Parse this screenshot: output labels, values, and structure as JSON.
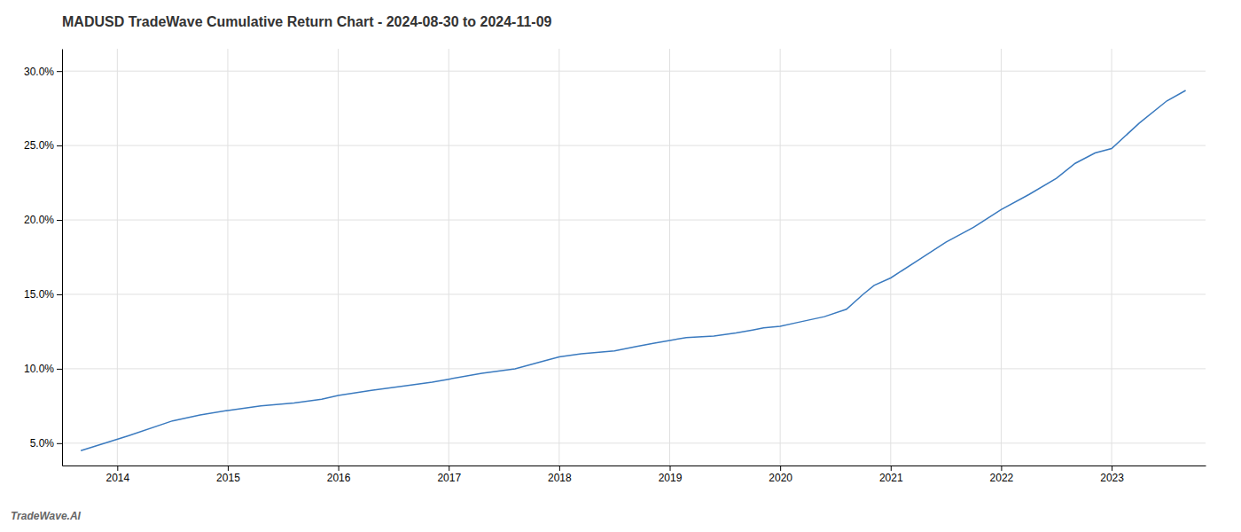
{
  "chart_data": {
    "type": "line",
    "title": "MADUSD TradeWave Cumulative Return Chart - 2024-08-30 to 2024-11-09",
    "annotations": [
      {
        "text": "TradeWave.AI"
      }
    ],
    "color": "#3a7abf",
    "grid": true,
    "x": [
      2013.67,
      2014.1,
      2014.5,
      2014.75,
      2015.0,
      2015.3,
      2015.6,
      2015.85,
      2016.0,
      2016.3,
      2016.6,
      2016.85,
      2017.0,
      2017.3,
      2017.6,
      2017.85,
      2018.0,
      2018.2,
      2018.5,
      2018.7,
      2018.85,
      2019.0,
      2019.15,
      2019.4,
      2019.6,
      2019.75,
      2019.85,
      2020.0,
      2020.15,
      2020.4,
      2020.6,
      2020.75,
      2020.85,
      2021.0,
      2021.25,
      2021.5,
      2021.75,
      2022.0,
      2022.25,
      2022.5,
      2022.67,
      2022.85,
      2023.0,
      2023.25,
      2023.5,
      2023.67
    ],
    "values": [
      4.5,
      5.5,
      6.5,
      6.9,
      7.2,
      7.5,
      7.7,
      7.95,
      8.2,
      8.55,
      8.85,
      9.1,
      9.3,
      9.7,
      10.0,
      10.5,
      10.8,
      11.0,
      11.2,
      11.5,
      11.7,
      11.9,
      12.1,
      12.2,
      12.4,
      12.6,
      12.75,
      12.85,
      13.1,
      13.5,
      14.0,
      15.0,
      15.6,
      16.1,
      17.3,
      18.5,
      19.5,
      20.7,
      21.7,
      22.8,
      23.8,
      24.5,
      24.8,
      26.5,
      28.0,
      28.7
    ],
    "xlim": [
      2013.5,
      2023.85
    ],
    "xticks": [
      2014,
      2015,
      2016,
      2017,
      2018,
      2019,
      2020,
      2021,
      2022,
      2023
    ],
    "ylim": [
      3.5,
      31.5
    ],
    "yticks": [
      {
        "value": 5.0,
        "label": "5.0%"
      },
      {
        "value": 10.0,
        "label": "10.0%"
      },
      {
        "value": 15.0,
        "label": "15.0%"
      },
      {
        "value": 20.0,
        "label": "20.0%"
      },
      {
        "value": 25.0,
        "label": "25.0%"
      },
      {
        "value": 30.0,
        "label": "30.0%"
      }
    ]
  }
}
